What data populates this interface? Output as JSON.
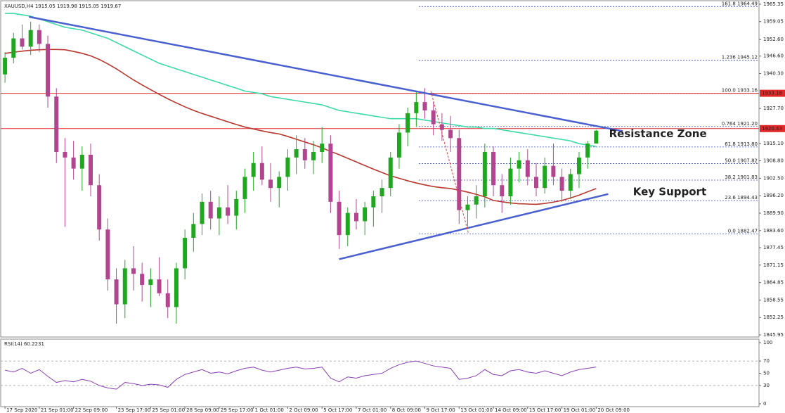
{
  "chart_data": {
    "type": "candlestick",
    "title": "XAUUSD,H4  1915.05 1919.98 1915.05 1919.67",
    "bull_color": "#1fa81f",
    "bear_color": "#b2458f",
    "open": [
      1940,
      1946,
      1953,
      1950,
      1956,
      1951,
      1932,
      1912,
      1910,
      1906,
      1911,
      1900,
      1884,
      1866,
      1857,
      1870,
      1868,
      1864,
      1866,
      1861,
      1856,
      1870,
      1881,
      1886,
      1894,
      1888,
      1892,
      1889,
      1895,
      1903,
      1908,
      1902,
      1899,
      1903,
      1910,
      1913,
      1909,
      1912,
      1915,
      1894,
      1882,
      1890,
      1887,
      1892,
      1896,
      1899,
      1910,
      1919,
      1926,
      1930,
      1927,
      1922,
      1920,
      1917,
      1891,
      1893,
      1896,
      1912,
      1900,
      1896,
      1906,
      1909,
      1903,
      1899,
      1907,
      1903,
      1898,
      1904,
      1910,
      1915.05
    ],
    "high": [
      1948,
      1955,
      1958,
      1959,
      1958,
      1954,
      1935,
      1917,
      1916,
      1914,
      1915,
      1904,
      1888,
      1870,
      1873,
      1878,
      1872,
      1870,
      1874,
      1866,
      1872,
      1884,
      1890,
      1897,
      1898,
      1896,
      1900,
      1898,
      1906,
      1912,
      1914,
      1908,
      1905,
      1913,
      1918,
      1917,
      1916,
      1921,
      1918,
      1898,
      1892,
      1895,
      1894,
      1898,
      1902,
      1912,
      1922,
      1928,
      1934,
      1935,
      1930,
      1926,
      1925,
      1920,
      1896,
      1900,
      1915,
      1914,
      1904,
      1910,
      1912,
      1913,
      1908,
      1910,
      1915,
      1906,
      1906,
      1912,
      1916,
      1919.98
    ],
    "low": [
      1937,
      1944,
      1949,
      1947,
      1948,
      1928,
      1908,
      1885,
      1902,
      1898,
      1896,
      1880,
      1862,
      1850,
      1852,
      1862,
      1858,
      1856,
      1860,
      1852,
      1850,
      1866,
      1876,
      1882,
      1884,
      1882,
      1886,
      1884,
      1890,
      1898,
      1900,
      1894,
      1892,
      1898,
      1904,
      1906,
      1904,
      1908,
      1890,
      1877,
      1878,
      1884,
      1882,
      1885,
      1890,
      1896,
      1906,
      1914,
      1921,
      1924,
      1918,
      1916,
      1912,
      1886,
      1885,
      1888,
      1892,
      1896,
      1890,
      1893,
      1901,
      1900,
      1896,
      1897,
      1900,
      1894,
      1895,
      1899,
      1906,
      1915.05
    ],
    "close": [
      1946,
      1953,
      1950,
      1956,
      1951,
      1932,
      1912,
      1910,
      1906,
      1911,
      1900,
      1884,
      1866,
      1857,
      1870,
      1868,
      1864,
      1866,
      1861,
      1856,
      1870,
      1881,
      1886,
      1894,
      1888,
      1892,
      1889,
      1895,
      1903,
      1908,
      1902,
      1899,
      1903,
      1910,
      1913,
      1909,
      1912,
      1915,
      1894,
      1882,
      1890,
      1887,
      1892,
      1896,
      1899,
      1910,
      1919,
      1926,
      1930,
      1927,
      1922,
      1920,
      1917,
      1891,
      1893,
      1896,
      1912,
      1900,
      1896,
      1906,
      1909,
      1903,
      1899,
      1907,
      1903,
      1898,
      1904,
      1910,
      1915.05,
      1919.67
    ],
    "series": [
      {
        "color": "#3ed9a8",
        "values": [
          1962,
          1962,
          1961.5,
          1961,
          1960,
          1959,
          1958,
          1957,
          1956.5,
          1956,
          1955,
          1954,
          1953,
          1951.5,
          1950,
          1948.5,
          1947,
          1945.5,
          1944,
          1943,
          1942,
          1941,
          1940,
          1939,
          1938,
          1937,
          1936,
          1935,
          1934,
          1933.5,
          1933,
          1932,
          1931.5,
          1931,
          1930.5,
          1930,
          1929.5,
          1929,
          1928,
          1927,
          1926.5,
          1926,
          1925.5,
          1925,
          1924.5,
          1924,
          1924,
          1924,
          1924,
          1923.5,
          1923,
          1922.5,
          1922,
          1921.5,
          1921,
          1921,
          1920.5,
          1920.5,
          1920,
          1919.5,
          1919,
          1918.5,
          1918,
          1917.5,
          1917,
          1916.5,
          1916,
          1915,
          1914.5,
          1914
        ]
      },
      {
        "color": "#b8362e",
        "values": [
          1947.6,
          1948,
          1948.4,
          1948.7,
          1948.9,
          1949,
          1949,
          1948.9,
          1948.3,
          1947.6,
          1946.7,
          1945.4,
          1943.8,
          1942,
          1940,
          1938,
          1936.2,
          1934.5,
          1932.8,
          1931.2,
          1929.7,
          1928.3,
          1927,
          1925.9,
          1924.9,
          1923.9,
          1922.9,
          1921.9,
          1921,
          1920.3,
          1919.6,
          1919,
          1918.5,
          1917.6,
          1916.6,
          1915.6,
          1914.6,
          1913.5,
          1912.2,
          1911,
          1909.7,
          1908.4,
          1907.1,
          1905.8,
          1904.6,
          1903.4,
          1902.5,
          1901.6,
          1900.8,
          1900.1,
          1899.5,
          1899.1,
          1898.8,
          1898.2,
          1897.5,
          1896.7,
          1895.8,
          1894.5,
          1894,
          1893.6,
          1893.3,
          1893.2,
          1893.1,
          1893.4,
          1893.9,
          1894.5,
          1895.4,
          1896.4,
          1897.6,
          1898.8
        ]
      }
    ],
    "ylim": [
      1845.2,
      1966.6
    ],
    "yticks": [
      1965.35,
      1959.05,
      {
        "value": 1952.6,
        "label": "1952.60"
      },
      {
        "value": 1946.6,
        "label": "1946.60"
      },
      {
        "value": 1940.3,
        "label": "1940.30"
      },
      {
        "value": 1927.7,
        "label": "1927.70"
      },
      {
        "value": 1915.1,
        "label": "1915.10"
      },
      {
        "value": 1908.8,
        "label": "1908.80"
      },
      {
        "value": 1902.5,
        "label": "1902.50"
      },
      {
        "value": 1896.2,
        "label": "1896.20"
      },
      {
        "value": 1889.9,
        "label": "1889.90"
      },
      {
        "value": 1883.6,
        "label": "1883.60"
      },
      1877.45,
      1871.15,
      1864.85,
      1858.55,
      1852.25,
      1845.95
    ],
    "xlim": [
      -0.5,
      88
    ],
    "xticks": [
      {
        "value": 0,
        "label": "17 Sep 2020"
      },
      {
        "value": 4,
        "label": "21 Sep 01:00"
      },
      {
        "value": 8,
        "label": "22 Sep 09:00"
      },
      {
        "value": 13,
        "label": "23 Sep 17:00"
      },
      {
        "value": 17,
        "label": "25 Sep 01:00"
      },
      {
        "value": 21,
        "label": "28 Sep 09:00"
      },
      {
        "value": 25,
        "label": "29 Sep 17:00"
      },
      {
        "value": 29,
        "label": "1 Oct 01:00"
      },
      {
        "value": 33,
        "label": "2 Oct 09:00"
      },
      {
        "value": 37,
        "label": "5 Oct 17:00"
      },
      {
        "value": 41,
        "label": "7 Oct 01:00"
      },
      {
        "value": 45,
        "label": "8 Oct 09:00"
      },
      {
        "value": 49,
        "label": "9 Oct 17:00"
      },
      {
        "value": 53,
        "label": "13 Oct 01:00"
      },
      {
        "value": 57,
        "label": "14 Oct 09:00"
      },
      {
        "value": 61,
        "label": "15 Oct 17:00"
      },
      {
        "value": 65,
        "label": "19 Oct 01:00"
      },
      {
        "value": 69,
        "label": "20 Oct 09:00"
      }
    ],
    "levels": [
      {
        "value": 1933.18,
        "color": "#e02828"
      },
      {
        "value": 1920.43,
        "color": "#e02828"
      }
    ],
    "fib_start": 48.3,
    "fib_levels": [
      {
        "value": 1964.49,
        "label": "161.8 1964.49"
      },
      {
        "value": 1945.12,
        "label": "1.236 1945.12"
      },
      {
        "value": 1933.16,
        "label": "100.0 1933.16"
      },
      {
        "value": 1921.2,
        "label": "0.764 1921.20"
      },
      {
        "value": 1913.8,
        "label": "61.8 1913.80"
      },
      {
        "value": 1907.82,
        "label": "50.0 1907.82"
      },
      {
        "value": 1901.83,
        "label": "38.2 1901.83"
      },
      {
        "value": 1894.43,
        "label": "23.6 1894.43"
      },
      {
        "value": 1882.47,
        "label": "0.0 1882.47"
      }
    ],
    "fib_line": {
      "x": [
        49.7,
        54.1
      ],
      "y": [
        1934,
        1882.5
      ],
      "color": "#e04040"
    },
    "trendlines": [
      {
        "x": [
          2.8,
          72.1
        ],
        "y": [
          1960.8,
          1919.5
        ],
        "color": "#4a5fd0"
      },
      {
        "x": [
          39,
          70.4
        ],
        "y": [
          1873.3,
          1896.8
        ],
        "color": "#4a5fd0"
      }
    ],
    "annotations": [
      {
        "text": "Resistance Zone",
        "x": 70.5,
        "y": 1918.5,
        "color": "#e0302c"
      },
      {
        "text": "Key Support",
        "x": 73.3,
        "y": 1897.5,
        "color": "#2cb050"
      }
    ],
    "rsi": {
      "label": "RSI(14) 60.2231",
      "color": "#8a3fb0",
      "ylim": [
        0,
        100
      ],
      "yticks": [
        100,
        70,
        50,
        30,
        0
      ],
      "dashed": [
        70,
        30
      ],
      "values": [
        55,
        52,
        58,
        50,
        56,
        45,
        35,
        38,
        36,
        40,
        37,
        30,
        26,
        24,
        35,
        33,
        30,
        32,
        31,
        27,
        40,
        48,
        52,
        56,
        50,
        52,
        49,
        54,
        58,
        60,
        55,
        52,
        55,
        58,
        60,
        57,
        58,
        60,
        42,
        36,
        44,
        42,
        46,
        48,
        50,
        58,
        64,
        68,
        70,
        66,
        62,
        60,
        58,
        40,
        42,
        46,
        56,
        48,
        46,
        54,
        56,
        52,
        50,
        54,
        50,
        46,
        52,
        56,
        58,
        60.2231
      ]
    }
  }
}
